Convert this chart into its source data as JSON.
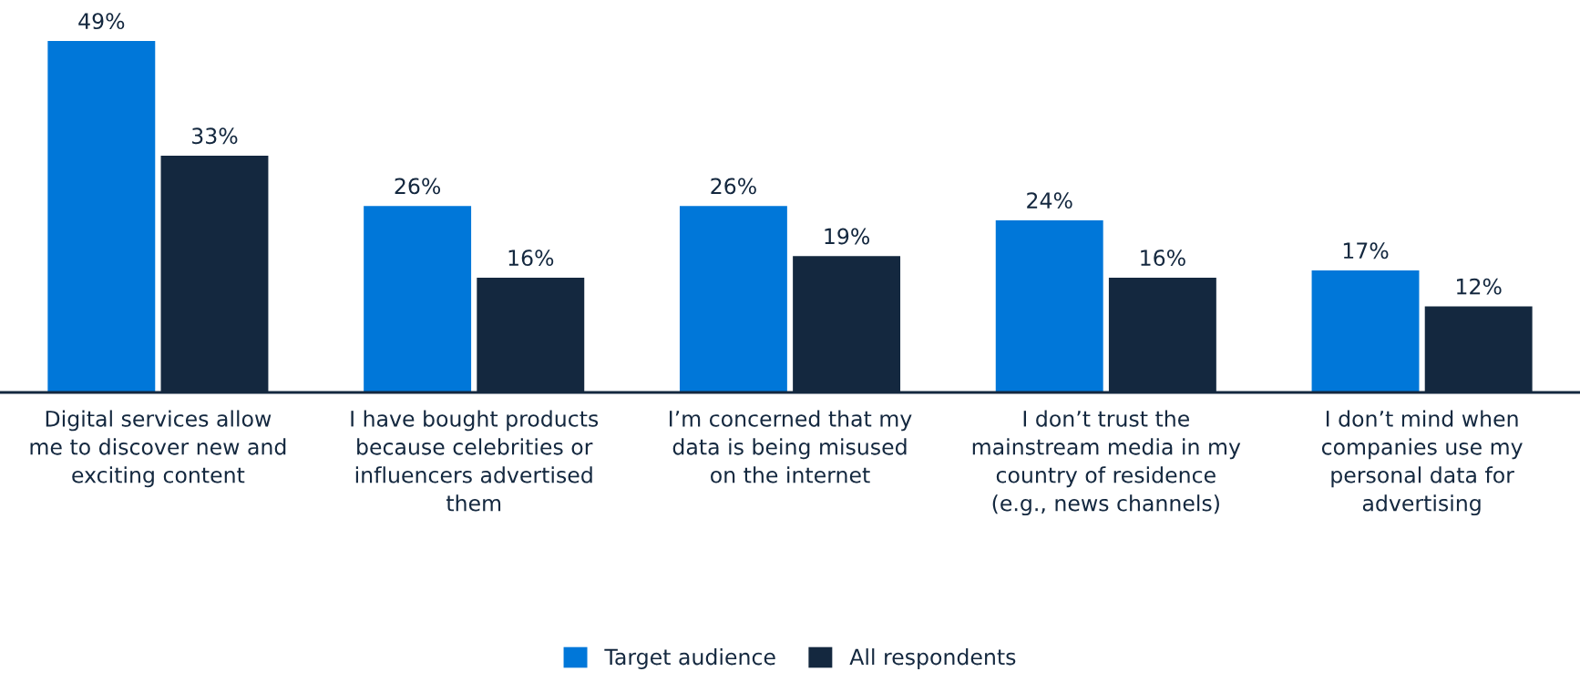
{
  "chart_data": {
    "type": "bar",
    "categories": [
      "Digital services allow me to discover new and exciting content",
      "I have bought products because celebrities or influencers advertised them",
      "I’m concerned that my data is being misused on the internet",
      "I don’t trust the mainstream media in my country of residence (e.g., news channels)",
      "I don’t mind when companies use my personal data for advertising"
    ],
    "series": [
      {
        "name": "Target audience",
        "color": "#0077d9",
        "values": [
          49,
          26,
          26,
          24,
          17
        ],
        "value_labels": [
          "49%",
          "26%",
          "26%",
          "24%",
          "17%"
        ]
      },
      {
        "name": "All respondents",
        "color": "#14283f",
        "values": [
          33,
          16,
          19,
          16,
          12
        ],
        "value_labels": [
          "33%",
          "16%",
          "19%",
          "16%",
          "12%"
        ]
      }
    ],
    "legend": "bottom",
    "grid": false
  }
}
